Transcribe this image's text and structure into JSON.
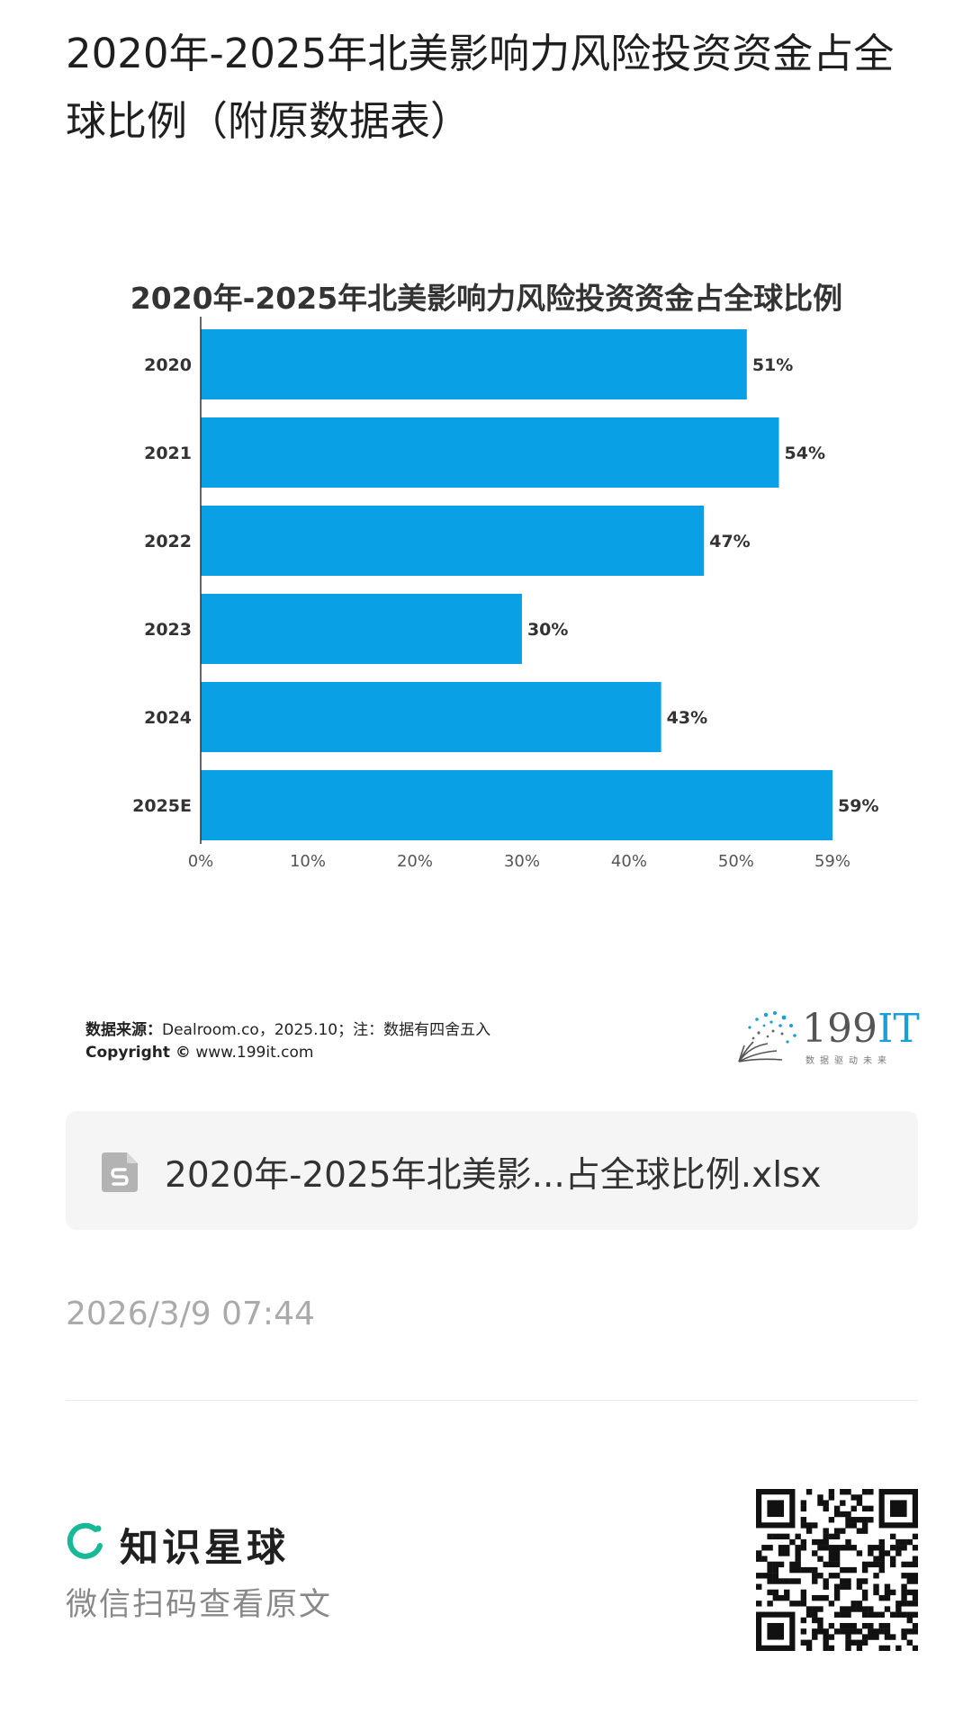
{
  "post": {
    "title": "2020年-2025年北美影响力风险投资资金占全球比例（附原数据表）"
  },
  "chart_data": {
    "type": "bar",
    "orientation": "horizontal",
    "title": "2020年-2025年北美影响力风险投资资金占全球比例",
    "categories": [
      "2020",
      "2021",
      "2022",
      "2023",
      "2024",
      "2025E"
    ],
    "values": [
      51,
      54,
      47,
      30,
      43,
      59
    ],
    "value_labels": [
      "51%",
      "54%",
      "47%",
      "30%",
      "43%",
      "59%"
    ],
    "xticks": [
      "0%",
      "10%",
      "20%",
      "30%",
      "40%",
      "50%",
      "59%"
    ],
    "xtick_values": [
      0,
      10,
      20,
      30,
      40,
      50,
      59
    ],
    "xlim": [
      0,
      59
    ],
    "bar_color": "#0aa0e6",
    "grid": false,
    "legend": "none"
  },
  "source": {
    "label": "数据来源：",
    "text": "Dealroom.co，2025.10；注：数据有四舍五入",
    "copyright_label": "Copyright ©",
    "copyright_site": "www.199it.com"
  },
  "logo": {
    "number": "199",
    "letters": "IT",
    "tagline": "数据驱动未来"
  },
  "attachment": {
    "icon": "spreadsheet-file-icon",
    "filename": "2020年-2025年北美影...占全球比例.xlsx"
  },
  "timestamp": "2026/3/9 07:44",
  "footer": {
    "brand": "知识星球",
    "brand_color": "#16b998",
    "hint": "微信扫码查看原文",
    "qr_icon": "qr-code-icon"
  }
}
